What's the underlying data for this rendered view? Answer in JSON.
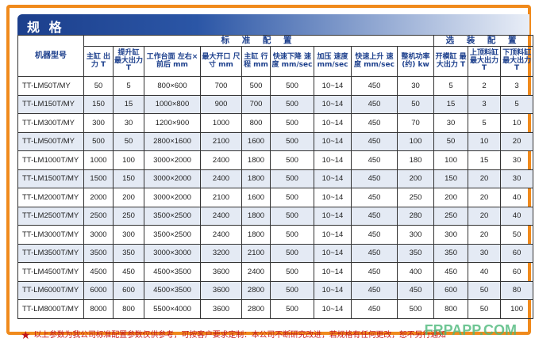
{
  "title": "规 格",
  "group_headers": {
    "model": "机器型号",
    "standard": "标 准 配 置",
    "optional": "选 装 配 置"
  },
  "columns": [
    "主缸 出力 T",
    "提升缸 最大出力 T",
    "工作台面 左右×前后 mm",
    "最大开口 尺寸 mm",
    "主缸 行程 mm",
    "快速下降 速度 mm/sec",
    "加压 速度 mm/sec",
    "快速上升 速度 mm/sec",
    "整机功率 (约) kw",
    "开模缸 最大出力 T",
    "上顶料缸 最大出力 T",
    "下顶料缸 最大出力 T"
  ],
  "rows": [
    [
      "TT-LM50T/MY",
      "50",
      "5",
      "800×600",
      "700",
      "500",
      "500",
      "10~14",
      "450",
      "30",
      "5",
      "2",
      "3"
    ],
    [
      "TT-LM150T/MY",
      "150",
      "15",
      "1000×800",
      "900",
      "700",
      "500",
      "10~14",
      "450",
      "50",
      "15",
      "3",
      "5"
    ],
    [
      "TT-LM300T/MY",
      "300",
      "30",
      "1200×900",
      "1000",
      "800",
      "500",
      "10~14",
      "450",
      "70",
      "30",
      "5",
      "10"
    ],
    [
      "TT-LM500T/MY",
      "500",
      "50",
      "2800×1600",
      "2100",
      "1600",
      "500",
      "10~14",
      "450",
      "100",
      "50",
      "10",
      "20"
    ],
    [
      "TT-LM1000T/MY",
      "1000",
      "100",
      "3000×2000",
      "2400",
      "1800",
      "500",
      "10~14",
      "450",
      "180",
      "100",
      "15",
      "30"
    ],
    [
      "TT-LM1500T/MY",
      "1500",
      "150",
      "3000×2000",
      "2400",
      "1800",
      "500",
      "10~14",
      "450",
      "200",
      "150",
      "20",
      "30"
    ],
    [
      "TT-LM2000T/MY",
      "2000",
      "200",
      "3000×2000",
      "2100",
      "1600",
      "500",
      "10~14",
      "450",
      "250",
      "200",
      "20",
      "40"
    ],
    [
      "TT-LM2500T/MY",
      "2500",
      "250",
      "3500×2500",
      "2400",
      "1800",
      "500",
      "10~14",
      "450",
      "280",
      "250",
      "20",
      "40"
    ],
    [
      "TT-LM3000T/MY",
      "3000",
      "300",
      "3500×2500",
      "2400",
      "1800",
      "500",
      "10~14",
      "450",
      "300",
      "300",
      "20",
      "50"
    ],
    [
      "TT-LM3500T/MY",
      "3500",
      "350",
      "3000×3000",
      "3200",
      "2100",
      "500",
      "10~14",
      "450",
      "350",
      "350",
      "30",
      "60"
    ],
    [
      "TT-LM4500T/MY",
      "4500",
      "450",
      "4500×3500",
      "3600",
      "2400",
      "500",
      "10~14",
      "450",
      "400",
      "450",
      "40",
      "60"
    ],
    [
      "TT-LM6000T/MY",
      "6000",
      "600",
      "4500×3500",
      "3600",
      "2800",
      "500",
      "10~14",
      "450",
      "450",
      "600",
      "50",
      "80"
    ],
    [
      "TT-LM8000T/MY",
      "8000",
      "800",
      "5500×4000",
      "3600",
      "2800",
      "500",
      "10~14",
      "450",
      "500",
      "800",
      "50",
      "100"
    ]
  ],
  "footer": "以上参数为我公司标准配置参数仅供参考，可按客户要求定制：本公司不断研究改进，若规格有任何更改，恕不另行通知",
  "watermark": "FRPAPP.COM",
  "colors": {
    "frame": "#f08a1c",
    "header_blue": "#1c3f8c",
    "footer_red": "#c0151b",
    "row_alt": "#e4eaf4"
  }
}
